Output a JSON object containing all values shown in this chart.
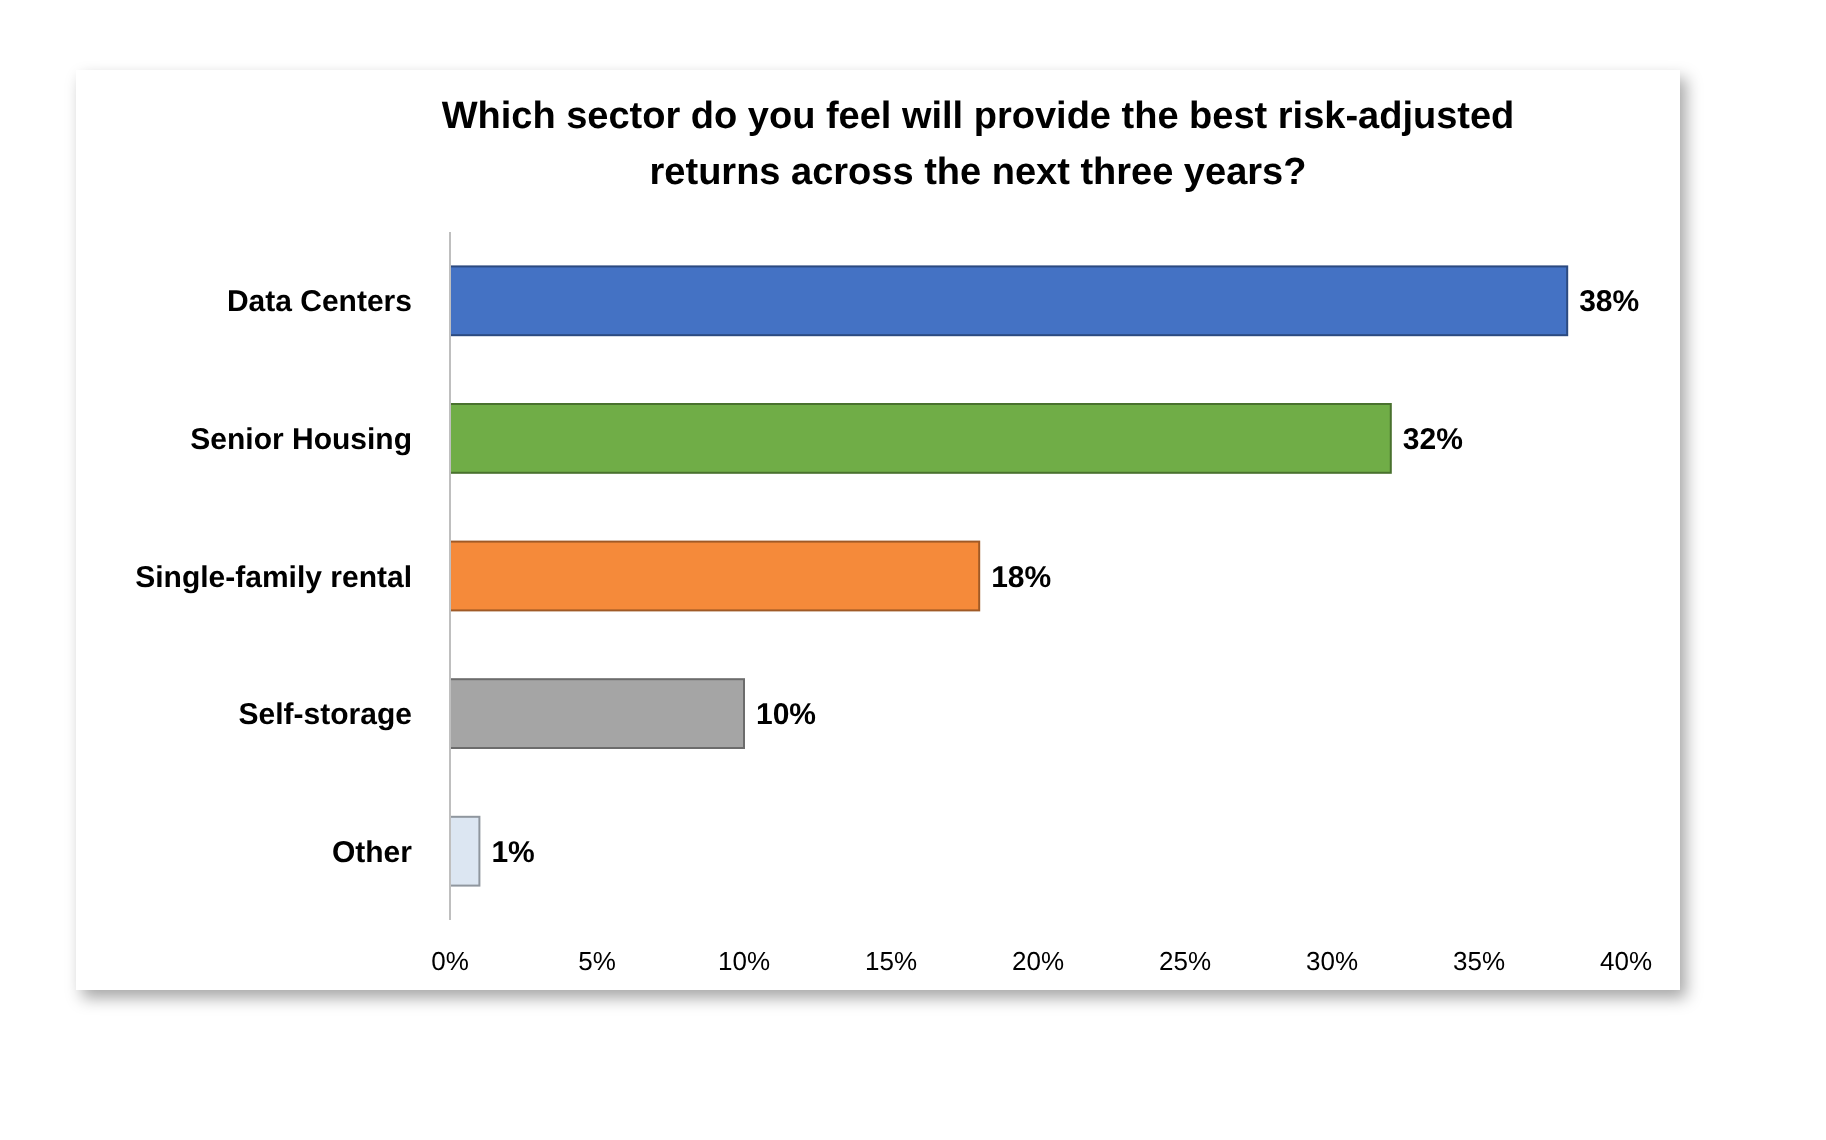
{
  "chart_data": {
    "type": "bar",
    "orientation": "horizontal",
    "title": "Which sector do you feel will provide the best risk-adjusted returns across the next three years?",
    "categories": [
      "Data Centers",
      "Senior Housing",
      "Single-family rental",
      "Self-storage",
      "Other"
    ],
    "values": [
      38,
      32,
      18,
      10,
      1
    ],
    "colors": [
      "#4472c4",
      "#70ad47",
      "#f58a3a",
      "#a5a5a5",
      "#dce6f2"
    ],
    "value_labels": [
      "38%",
      "32%",
      "18%",
      "10%",
      "1%"
    ],
    "xlim": [
      0,
      40
    ],
    "xticks": [
      {
        "value": 0,
        "label": "0%"
      },
      {
        "value": 5,
        "label": "5%"
      },
      {
        "value": 10,
        "label": "10%"
      },
      {
        "value": 15,
        "label": "15%"
      },
      {
        "value": 20,
        "label": "20%"
      },
      {
        "value": 25,
        "label": "25%"
      },
      {
        "value": 30,
        "label": "30%"
      },
      {
        "value": 35,
        "label": "35%"
      },
      {
        "value": 40,
        "label": "40%"
      }
    ],
    "grid": false
  }
}
